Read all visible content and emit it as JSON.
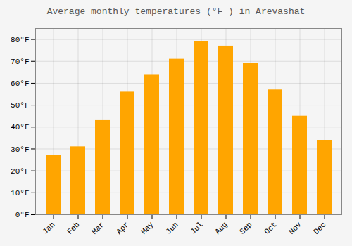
{
  "chart_data": {
    "type": "bar",
    "title": "Average monthly temperatures (°F ) in Arevashat",
    "categories": [
      "Jan",
      "Feb",
      "Mar",
      "Apr",
      "May",
      "Jun",
      "Jul",
      "Aug",
      "Sep",
      "Oct",
      "Nov",
      "Dec"
    ],
    "values": [
      27,
      31,
      43,
      56,
      64,
      71,
      79,
      77,
      69,
      57,
      45,
      34
    ],
    "color": "#FFA500",
    "ylim": [
      0,
      85
    ],
    "yticks": [
      {
        "value": 0,
        "label": "0°F"
      },
      {
        "value": 10,
        "label": "10°F"
      },
      {
        "value": 20,
        "label": "20°F"
      },
      {
        "value": 30,
        "label": "30°F"
      },
      {
        "value": 40,
        "label": "40°F"
      },
      {
        "value": 50,
        "label": "50°F"
      },
      {
        "value": 60,
        "label": "60°F"
      },
      {
        "value": 70,
        "label": "70°F"
      },
      {
        "value": 80,
        "label": "80°F"
      }
    ],
    "grid": true
  }
}
